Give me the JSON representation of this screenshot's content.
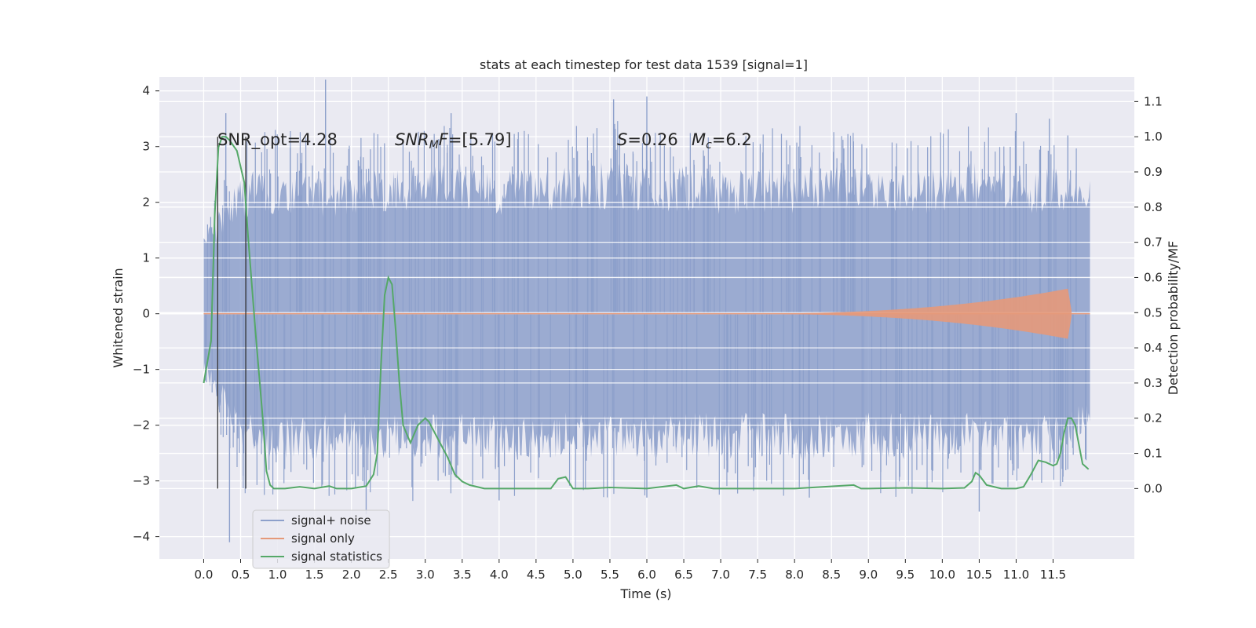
{
  "chart_data": {
    "type": "line",
    "title": "stats at each timestep for test data 1539 [signal=1]",
    "xlabel": "Time (s)",
    "ylabel": "Whitened strain",
    "ylabel_right": "Detection probability/MF",
    "xlim": [
      -0.6,
      12.6
    ],
    "ylim": [
      -4.4,
      4.25
    ],
    "ylim_right": [
      -0.2,
      1.17
    ],
    "x_ticks": [
      "0.0",
      "0.5",
      "1.0",
      "1.5",
      "2.0",
      "2.5",
      "3.0",
      "3.5",
      "4.0",
      "4.5",
      "5.0",
      "5.5",
      "6.0",
      "6.5",
      "7.0",
      "7.5",
      "8.0",
      "8.5",
      "9.0",
      "9.5",
      "10.0",
      "10.5",
      "11.0",
      "11.5"
    ],
    "y_ticks": [
      -4,
      -3,
      -2,
      -1,
      0,
      1,
      2,
      3,
      4
    ],
    "y_ticks_right": [
      "0.0",
      "0.1",
      "0.2",
      "0.3",
      "0.4",
      "0.5",
      "0.6",
      "0.7",
      "0.8",
      "0.9",
      "1.0",
      "1.1"
    ],
    "grid": true,
    "legend_position": "lower-left",
    "annotations": {
      "snr_opt": "SNR_opt=4.28",
      "snr_mf_main": "SNR",
      "snr_mf_sub": "M",
      "snr_mf_tail": "F",
      "snr_mf_value": "=[5.79]",
      "s_sym": "S",
      "s_value": "=0.26",
      "mc_sym": "M",
      "mc_sub": "c",
      "mc_value": "=6.2"
    },
    "vlines_x": [
      0.19,
      0.57
    ],
    "series": [
      {
        "name": "signal+ noise",
        "color": "#8da0cb",
        "axis": "left",
        "t_range": [
          0.0,
          12.0
        ],
        "envelope_upper": [
          1.3,
          2.3,
          2.4,
          2.3,
          2.3,
          2.4,
          2.4,
          2.5,
          2.3,
          2.4,
          2.4,
          2.5,
          2.4,
          2.4,
          2.3,
          2.4,
          2.4,
          2.5,
          2.4,
          2.3,
          2.4,
          2.5,
          2.4,
          2.4,
          2.2
        ],
        "envelope_lower": [
          -1.0,
          -2.3,
          -2.4,
          -2.4,
          -2.3,
          -2.4,
          -2.4,
          -2.3,
          -2.4,
          -2.4,
          -2.3,
          -2.4,
          -2.4,
          -2.3,
          -2.4,
          -2.3,
          -2.4,
          -2.4,
          -2.3,
          -2.4,
          -2.4,
          -2.3,
          -2.4,
          -2.3,
          -2.0
        ],
        "extreme_spikes": [
          {
            "t": 0.3,
            "y": 3.6
          },
          {
            "t": 0.35,
            "y": -4.1
          },
          {
            "t": 1.65,
            "y": 4.2
          },
          {
            "t": 2.2,
            "y": -3.6
          },
          {
            "t": 3.35,
            "y": 3.6
          },
          {
            "t": 4.0,
            "y": -3.35
          },
          {
            "t": 5.55,
            "y": 3.85
          },
          {
            "t": 6.0,
            "y": 3.9
          },
          {
            "t": 6.0,
            "y": -3.3
          },
          {
            "t": 8.2,
            "y": -3.3
          },
          {
            "t": 10.5,
            "y": -3.55
          },
          {
            "t": 11.0,
            "y": 3.6
          },
          {
            "t": 11.45,
            "y": 3.5
          },
          {
            "t": 11.7,
            "y": 3.2
          }
        ]
      },
      {
        "name": "signal only",
        "color": "#e5997a",
        "axis": "left",
        "t_range": [
          0.0,
          12.0
        ],
        "chirp_onset": 7.0,
        "chirp_merger": 11.7,
        "chirp_peak_amplitude": 0.45
      },
      {
        "name": "signal statistics",
        "color": "#55a868",
        "axis": "right",
        "x": [
          0.0,
          0.1,
          0.15,
          0.2,
          0.25,
          0.3,
          0.35,
          0.45,
          0.55,
          0.6,
          0.7,
          0.8,
          0.85,
          0.9,
          0.95,
          1.0,
          1.1,
          1.3,
          1.5,
          1.7,
          1.8,
          2.0,
          2.2,
          2.3,
          2.35,
          2.4,
          2.45,
          2.5,
          2.55,
          2.6,
          2.65,
          2.7,
          2.8,
          2.9,
          3.0,
          3.05,
          3.1,
          3.2,
          3.3,
          3.4,
          3.5,
          3.6,
          3.8,
          4.0,
          4.5,
          4.7,
          4.8,
          4.9,
          5.0,
          5.2,
          5.5,
          6.0,
          6.4,
          6.5,
          6.7,
          6.9,
          7.2,
          8.0,
          8.8,
          8.9,
          9.0,
          9.5,
          10.0,
          10.3,
          10.4,
          10.45,
          10.5,
          10.6,
          10.8,
          11.0,
          11.1,
          11.2,
          11.3,
          11.4,
          11.5,
          11.55,
          11.6,
          11.65,
          11.7,
          11.75,
          11.8,
          11.9,
          11.98
        ],
        "y": [
          0.3,
          0.42,
          0.78,
          0.97,
          1.0,
          1.0,
          0.99,
          0.96,
          0.87,
          0.72,
          0.45,
          0.2,
          0.05,
          0.01,
          0.0,
          0.0,
          0.0,
          0.005,
          0.0,
          0.007,
          0.0,
          0.0,
          0.007,
          0.04,
          0.1,
          0.35,
          0.55,
          0.6,
          0.58,
          0.45,
          0.3,
          0.18,
          0.13,
          0.18,
          0.2,
          0.19,
          0.17,
          0.13,
          0.09,
          0.04,
          0.02,
          0.01,
          0.0,
          0.0,
          0.0,
          0.0,
          0.028,
          0.033,
          0.0,
          0.0,
          0.003,
          0.0,
          0.01,
          0.0,
          0.007,
          0.0,
          0.0,
          0.0,
          0.01,
          0.0,
          0.0,
          0.002,
          0.0,
          0.002,
          0.02,
          0.045,
          0.038,
          0.01,
          0.0,
          0.0,
          0.005,
          0.04,
          0.08,
          0.075,
          0.065,
          0.07,
          0.1,
          0.16,
          0.2,
          0.2,
          0.18,
          0.07,
          0.055
        ]
      }
    ]
  }
}
